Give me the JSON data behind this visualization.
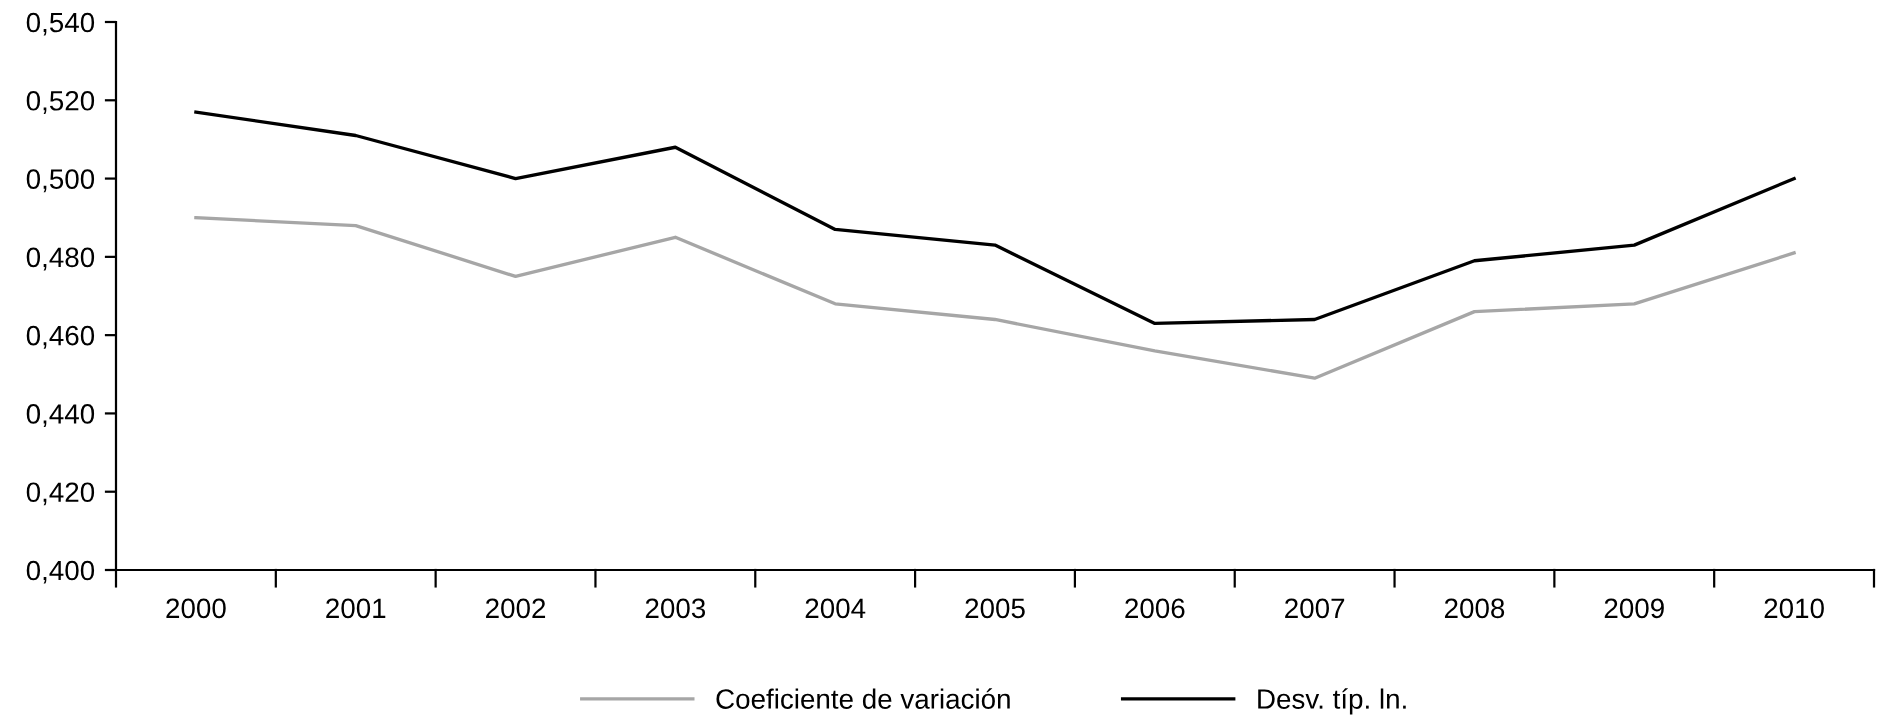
{
  "chart_data": {
    "type": "line",
    "categories": [
      "2000",
      "2001",
      "2002",
      "2003",
      "2004",
      "2005",
      "2006",
      "2007",
      "2008",
      "2009",
      "2010"
    ],
    "series": [
      {
        "name": "Coeficiente de variación",
        "color": "#a6a6a6",
        "values": [
          0.49,
          0.488,
          0.475,
          0.485,
          0.468,
          0.464,
          0.456,
          0.449,
          0.466,
          0.468,
          0.481
        ]
      },
      {
        "name": "Desv. típ. ln.",
        "color": "#000000",
        "values": [
          0.517,
          0.511,
          0.5,
          0.508,
          0.487,
          0.483,
          0.463,
          0.464,
          0.479,
          0.483,
          0.5
        ]
      }
    ],
    "ylim": [
      0.4,
      0.54
    ],
    "yticks": [
      {
        "value": 0.4,
        "label": "0,400"
      },
      {
        "value": 0.42,
        "label": "0,420"
      },
      {
        "value": 0.44,
        "label": "0,440"
      },
      {
        "value": 0.46,
        "label": "0,460"
      },
      {
        "value": 0.48,
        "label": "0,480"
      },
      {
        "value": 0.5,
        "label": "0,500"
      },
      {
        "value": 0.52,
        "label": "0,520"
      },
      {
        "value": 0.54,
        "label": "0,540"
      }
    ],
    "grid": false,
    "legend": "bottom",
    "marker": "none",
    "line_style": "solid"
  }
}
